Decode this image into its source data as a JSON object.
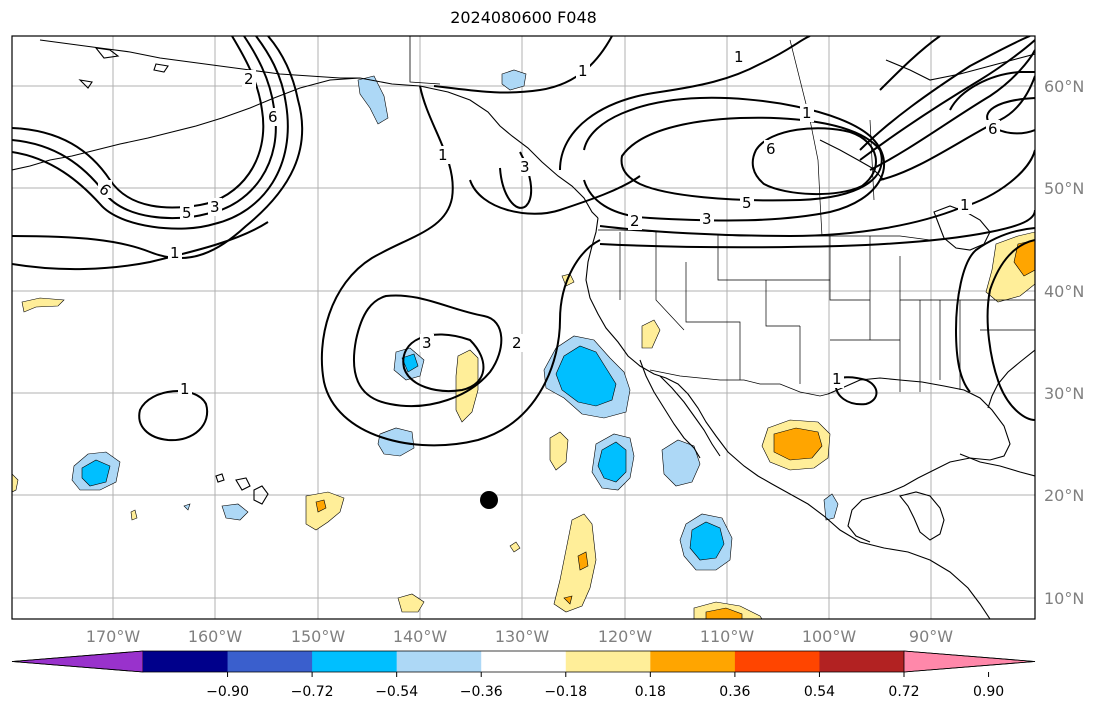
{
  "title": "2024080600 F048",
  "colors": {
    "contour": "#000000",
    "coast": "#000000",
    "grid": "#b0b0b0",
    "marker": "#000000",
    "fill_light_yellow": "#ffee99",
    "fill_orange": "#ffa500",
    "fill_light_blue": "#add8f6",
    "fill_blue": "#00bfff"
  },
  "latitude_labels": [
    "10°N",
    "20°N",
    "30°N",
    "40°N",
    "50°N",
    "60°N"
  ],
  "longitude_labels": [
    "170°W",
    "160°W",
    "150°W",
    "140°W",
    "130°W",
    "120°W",
    "110°W",
    "100°W",
    "90°W"
  ],
  "contour_labels": [
    "1",
    "2",
    "3",
    "5",
    "6"
  ],
  "colorbar": {
    "colors": [
      "#9932cc",
      "#00008b",
      "#3a5fcd",
      "#00bfff",
      "#add8f6",
      "#ffffff",
      "#ffee99",
      "#ffa500",
      "#ff4500",
      "#b22222",
      "#ff88aa"
    ],
    "ticks": [
      "−0.90",
      "−0.72",
      "−0.54",
      "−0.36",
      "−0.18",
      "0.18",
      "0.36",
      "0.54",
      "0.72",
      "0.90"
    ]
  }
}
